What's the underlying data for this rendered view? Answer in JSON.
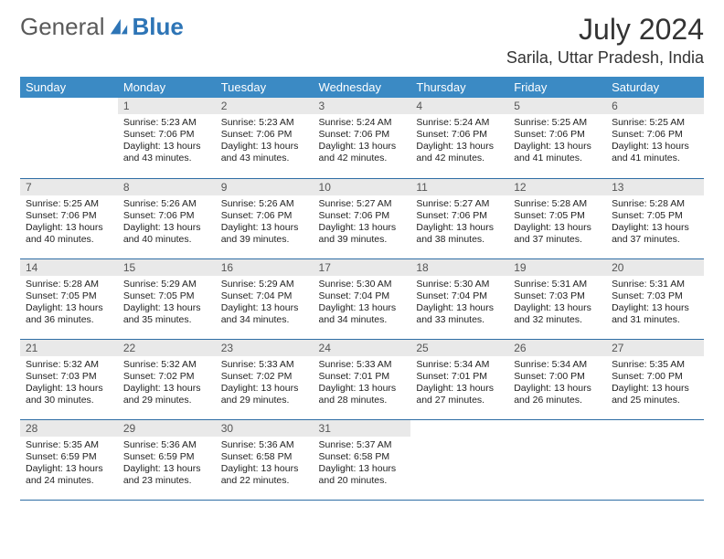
{
  "brand": {
    "part1": "General",
    "part2": "Blue"
  },
  "title": "July 2024",
  "location": "Sarila, Uttar Pradesh, India",
  "colors": {
    "header_bg": "#3b8ac4",
    "header_text": "#ffffff",
    "daynum_bg": "#e9e9e9",
    "daynum_text": "#555555",
    "body_text": "#222222",
    "rule": "#2e6da4",
    "brand_gray": "#5a5a5a",
    "brand_blue": "#2e75b6"
  },
  "fonts": {
    "title_pt": 32,
    "location_pt": 18,
    "dayhead_pt": 13,
    "body_pt": 10.5
  },
  "day_headers": [
    "Sunday",
    "Monday",
    "Tuesday",
    "Wednesday",
    "Thursday",
    "Friday",
    "Saturday"
  ],
  "weeks": [
    [
      {
        "n": "",
        "sr": "",
        "ss": "",
        "dl": "",
        "empty": true
      },
      {
        "n": "1",
        "sr": "Sunrise: 5:23 AM",
        "ss": "Sunset: 7:06 PM",
        "dl": "Daylight: 13 hours and 43 minutes."
      },
      {
        "n": "2",
        "sr": "Sunrise: 5:23 AM",
        "ss": "Sunset: 7:06 PM",
        "dl": "Daylight: 13 hours and 43 minutes."
      },
      {
        "n": "3",
        "sr": "Sunrise: 5:24 AM",
        "ss": "Sunset: 7:06 PM",
        "dl": "Daylight: 13 hours and 42 minutes."
      },
      {
        "n": "4",
        "sr": "Sunrise: 5:24 AM",
        "ss": "Sunset: 7:06 PM",
        "dl": "Daylight: 13 hours and 42 minutes."
      },
      {
        "n": "5",
        "sr": "Sunrise: 5:25 AM",
        "ss": "Sunset: 7:06 PM",
        "dl": "Daylight: 13 hours and 41 minutes."
      },
      {
        "n": "6",
        "sr": "Sunrise: 5:25 AM",
        "ss": "Sunset: 7:06 PM",
        "dl": "Daylight: 13 hours and 41 minutes."
      }
    ],
    [
      {
        "n": "7",
        "sr": "Sunrise: 5:25 AM",
        "ss": "Sunset: 7:06 PM",
        "dl": "Daylight: 13 hours and 40 minutes."
      },
      {
        "n": "8",
        "sr": "Sunrise: 5:26 AM",
        "ss": "Sunset: 7:06 PM",
        "dl": "Daylight: 13 hours and 40 minutes."
      },
      {
        "n": "9",
        "sr": "Sunrise: 5:26 AM",
        "ss": "Sunset: 7:06 PM",
        "dl": "Daylight: 13 hours and 39 minutes."
      },
      {
        "n": "10",
        "sr": "Sunrise: 5:27 AM",
        "ss": "Sunset: 7:06 PM",
        "dl": "Daylight: 13 hours and 39 minutes."
      },
      {
        "n": "11",
        "sr": "Sunrise: 5:27 AM",
        "ss": "Sunset: 7:06 PM",
        "dl": "Daylight: 13 hours and 38 minutes."
      },
      {
        "n": "12",
        "sr": "Sunrise: 5:28 AM",
        "ss": "Sunset: 7:05 PM",
        "dl": "Daylight: 13 hours and 37 minutes."
      },
      {
        "n": "13",
        "sr": "Sunrise: 5:28 AM",
        "ss": "Sunset: 7:05 PM",
        "dl": "Daylight: 13 hours and 37 minutes."
      }
    ],
    [
      {
        "n": "14",
        "sr": "Sunrise: 5:28 AM",
        "ss": "Sunset: 7:05 PM",
        "dl": "Daylight: 13 hours and 36 minutes."
      },
      {
        "n": "15",
        "sr": "Sunrise: 5:29 AM",
        "ss": "Sunset: 7:05 PM",
        "dl": "Daylight: 13 hours and 35 minutes."
      },
      {
        "n": "16",
        "sr": "Sunrise: 5:29 AM",
        "ss": "Sunset: 7:04 PM",
        "dl": "Daylight: 13 hours and 34 minutes."
      },
      {
        "n": "17",
        "sr": "Sunrise: 5:30 AM",
        "ss": "Sunset: 7:04 PM",
        "dl": "Daylight: 13 hours and 34 minutes."
      },
      {
        "n": "18",
        "sr": "Sunrise: 5:30 AM",
        "ss": "Sunset: 7:04 PM",
        "dl": "Daylight: 13 hours and 33 minutes."
      },
      {
        "n": "19",
        "sr": "Sunrise: 5:31 AM",
        "ss": "Sunset: 7:03 PM",
        "dl": "Daylight: 13 hours and 32 minutes."
      },
      {
        "n": "20",
        "sr": "Sunrise: 5:31 AM",
        "ss": "Sunset: 7:03 PM",
        "dl": "Daylight: 13 hours and 31 minutes."
      }
    ],
    [
      {
        "n": "21",
        "sr": "Sunrise: 5:32 AM",
        "ss": "Sunset: 7:03 PM",
        "dl": "Daylight: 13 hours and 30 minutes."
      },
      {
        "n": "22",
        "sr": "Sunrise: 5:32 AM",
        "ss": "Sunset: 7:02 PM",
        "dl": "Daylight: 13 hours and 29 minutes."
      },
      {
        "n": "23",
        "sr": "Sunrise: 5:33 AM",
        "ss": "Sunset: 7:02 PM",
        "dl": "Daylight: 13 hours and 29 minutes."
      },
      {
        "n": "24",
        "sr": "Sunrise: 5:33 AM",
        "ss": "Sunset: 7:01 PM",
        "dl": "Daylight: 13 hours and 28 minutes."
      },
      {
        "n": "25",
        "sr": "Sunrise: 5:34 AM",
        "ss": "Sunset: 7:01 PM",
        "dl": "Daylight: 13 hours and 27 minutes."
      },
      {
        "n": "26",
        "sr": "Sunrise: 5:34 AM",
        "ss": "Sunset: 7:00 PM",
        "dl": "Daylight: 13 hours and 26 minutes."
      },
      {
        "n": "27",
        "sr": "Sunrise: 5:35 AM",
        "ss": "Sunset: 7:00 PM",
        "dl": "Daylight: 13 hours and 25 minutes."
      }
    ],
    [
      {
        "n": "28",
        "sr": "Sunrise: 5:35 AM",
        "ss": "Sunset: 6:59 PM",
        "dl": "Daylight: 13 hours and 24 minutes."
      },
      {
        "n": "29",
        "sr": "Sunrise: 5:36 AM",
        "ss": "Sunset: 6:59 PM",
        "dl": "Daylight: 13 hours and 23 minutes."
      },
      {
        "n": "30",
        "sr": "Sunrise: 5:36 AM",
        "ss": "Sunset: 6:58 PM",
        "dl": "Daylight: 13 hours and 22 minutes."
      },
      {
        "n": "31",
        "sr": "Sunrise: 5:37 AM",
        "ss": "Sunset: 6:58 PM",
        "dl": "Daylight: 13 hours and 20 minutes."
      },
      {
        "n": "",
        "sr": "",
        "ss": "",
        "dl": "",
        "empty": true
      },
      {
        "n": "",
        "sr": "",
        "ss": "",
        "dl": "",
        "empty": true
      },
      {
        "n": "",
        "sr": "",
        "ss": "",
        "dl": "",
        "empty": true
      }
    ]
  ]
}
